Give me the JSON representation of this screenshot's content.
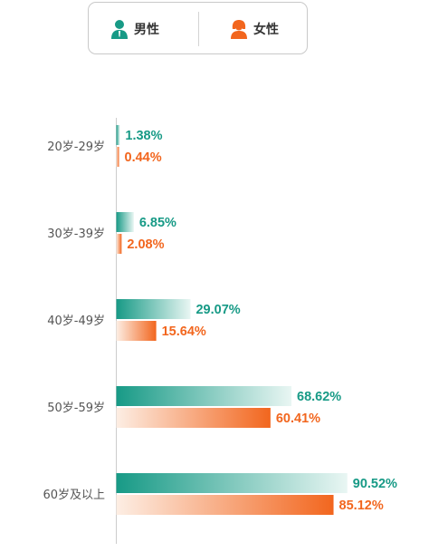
{
  "legend": {
    "male": {
      "label": "男性",
      "icon": "male-person-icon",
      "color": "#179a86"
    },
    "female": {
      "label": "女性",
      "icon": "female-person-icon",
      "color": "#f2661e"
    }
  },
  "chart_data": {
    "type": "bar",
    "orientation": "horizontal",
    "categories": [
      "20岁-29岁",
      "30岁-39岁",
      "40岁-49岁",
      "50岁-59岁",
      "60岁及以上"
    ],
    "series": [
      {
        "name": "男性",
        "values": [
          1.38,
          6.85,
          29.07,
          68.62,
          90.52
        ],
        "color": "#179a86"
      },
      {
        "name": "女性",
        "values": [
          0.44,
          2.08,
          15.64,
          60.41,
          85.12
        ],
        "color": "#f2661e"
      }
    ],
    "value_labels": {
      "男性": [
        "1.38%",
        "6.85%",
        "29.07%",
        "68.62%",
        "90.52%"
      ],
      "女性": [
        "0.44%",
        "2.08%",
        "15.64%",
        "60.41%",
        "85.12%"
      ]
    },
    "xlim": [
      0,
      100
    ],
    "grid": false,
    "legend_position": "top"
  }
}
